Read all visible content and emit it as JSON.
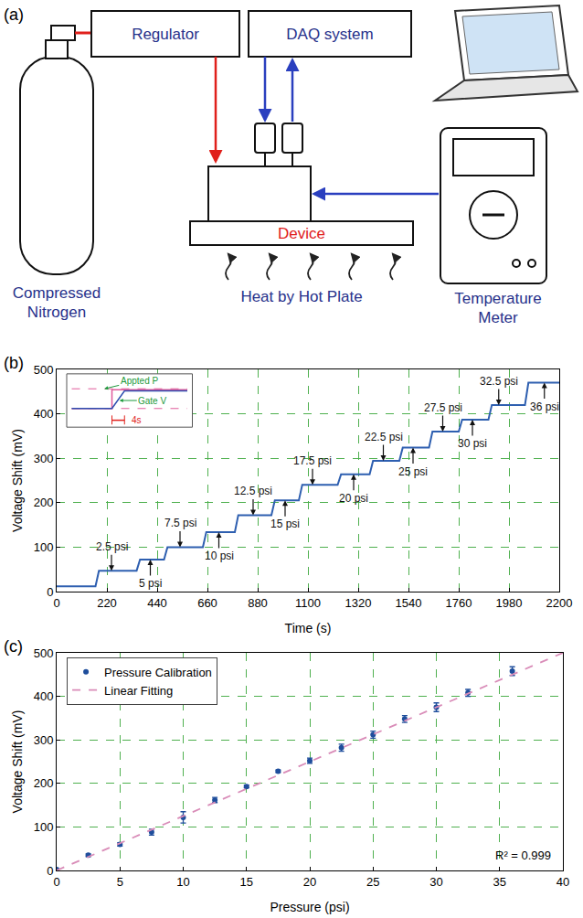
{
  "diagram": {
    "panel": "(a)",
    "nitrogen": "Compressed Nitrogen",
    "regulator": "Regulator",
    "daq": "DAQ system",
    "device": "Device",
    "meter": "Temperature Meter",
    "heater": "Heat by Hot Plate"
  },
  "chart_data": [
    {
      "panel": "(b)",
      "type": "line",
      "x_label": "Time (s)",
      "y_label": "Voltage Shift (mV)",
      "x": [
        0,
        170,
        185,
        350,
        365,
        470,
        485,
        640,
        655,
        780,
        795,
        940,
        955,
        1060,
        1075,
        1230,
        1245,
        1370,
        1385,
        1500,
        1515,
        1630,
        1645,
        1760,
        1775,
        1890,
        1905,
        2050,
        2065,
        2200
      ],
      "values": [
        12,
        12,
        47,
        47,
        72,
        72,
        100,
        100,
        134,
        134,
        172,
        172,
        205,
        205,
        240,
        240,
        264,
        264,
        294,
        294,
        324,
        324,
        360,
        360,
        387,
        387,
        420,
        420,
        470,
        470
      ],
      "color": "#2e5fb0",
      "xlim": [
        0,
        2200
      ],
      "xticks": [
        0,
        220,
        440,
        660,
        880,
        1100,
        1320,
        1540,
        1760,
        1980,
        2200
      ],
      "ylim": [
        0,
        500
      ],
      "yticks": [
        0,
        100,
        200,
        300,
        400,
        500
      ],
      "grid": true,
      "annotations": [
        {
          "text": "2.5 psi",
          "x": 240,
          "y": 47
        },
        {
          "text": "5 psi",
          "x": 410,
          "y": 72
        },
        {
          "text": "7.5 psi",
          "x": 540,
          "y": 100
        },
        {
          "text": "10 psi",
          "x": 710,
          "y": 134
        },
        {
          "text": "12.5 psi",
          "x": 860,
          "y": 172
        },
        {
          "text": "15 psi",
          "x": 1000,
          "y": 205
        },
        {
          "text": "17.5 psi",
          "x": 1120,
          "y": 240
        },
        {
          "text": "20 psi",
          "x": 1300,
          "y": 264
        },
        {
          "text": "22.5 psi",
          "x": 1430,
          "y": 294
        },
        {
          "text": "25 psi",
          "x": 1560,
          "y": 324
        },
        {
          "text": "27.5 psi",
          "x": 1690,
          "y": 360
        },
        {
          "text": "30 psi",
          "x": 1820,
          "y": 387
        },
        {
          "text": "32.5 psi",
          "x": 1935,
          "y": 420
        },
        {
          "text": "36 psi",
          "x": 2135,
          "y": 470
        }
      ],
      "inset": {
        "pressure_label": "Appted P",
        "gate_label": "Gate V",
        "time_label": "4s"
      }
    },
    {
      "panel": "(c)",
      "type": "scatter",
      "x_label": "Pressure (psi)",
      "y_label": "Voltage Shift (mV)",
      "xlim": [
        0,
        40
      ],
      "xticks": [
        0,
        5,
        10,
        15,
        20,
        25,
        30,
        35,
        40
      ],
      "ylim": [
        0,
        500
      ],
      "yticks": [
        0,
        100,
        200,
        300,
        400,
        500
      ],
      "grid": true,
      "legend": "upper left",
      "series": [
        {
          "name": "Pressure Calibration",
          "type": "scatter",
          "marker": "circle",
          "color": "#1f4e9c",
          "x": [
            0,
            2.5,
            5,
            7.5,
            10,
            12.5,
            15,
            17.5,
            20,
            22.5,
            25,
            27.5,
            30,
            32.5,
            36
          ],
          "values": [
            2,
            35,
            60,
            88,
            122,
            162,
            193,
            228,
            252,
            282,
            312,
            348,
            375,
            408,
            458
          ],
          "errors": [
            2,
            3,
            4,
            7,
            13,
            6,
            3,
            3,
            6,
            8,
            8,
            8,
            10,
            8,
            10
          ]
        },
        {
          "name": "Linear Fitting",
          "type": "line",
          "line_style": "dash",
          "color": "#d98cb8",
          "x": [
            0,
            40
          ],
          "values": [
            0,
            500
          ]
        }
      ],
      "annotations": [
        {
          "text": "R² = 0.999"
        }
      ]
    }
  ]
}
